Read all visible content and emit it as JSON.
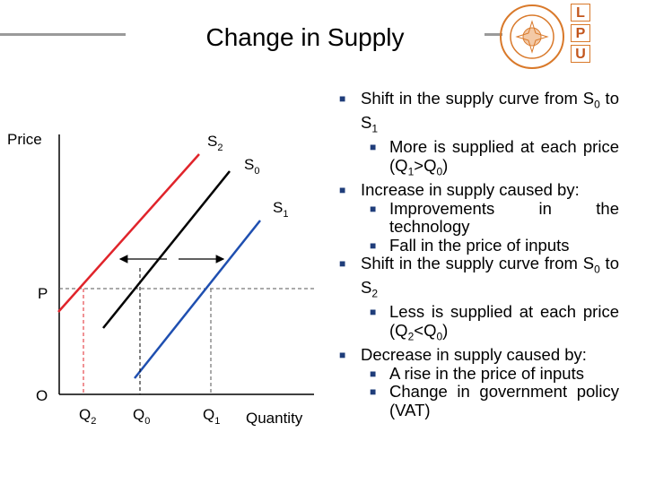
{
  "title": "Change in Supply",
  "logo_letters": [
    "L",
    "P",
    "U"
  ],
  "seal_text": "LOVELY PROFESSIONAL UNIVERSITY",
  "diagram": {
    "y_label": "Price",
    "x_label": "Quantity",
    "origin": "O",
    "price_label": "P",
    "curves": [
      {
        "name": "S",
        "sub": "2",
        "color": "#e0242b"
      },
      {
        "name": "S",
        "sub": "0",
        "color": "#000000"
      },
      {
        "name": "S",
        "sub": "1",
        "color": "#1f4fb0"
      }
    ],
    "quantities": [
      {
        "name": "Q",
        "sub": "2"
      },
      {
        "name": "Q",
        "sub": "0"
      },
      {
        "name": "Q",
        "sub": "1"
      }
    ]
  },
  "bullets": [
    {
      "level": 1,
      "text": "Shift in the supply curve from S0 to S1"
    },
    {
      "level": 2,
      "text": "More is supplied at each price (Q1>Q0)"
    },
    {
      "level": 1,
      "text": "Increase in supply caused by:"
    },
    {
      "level": 2,
      "text": "Improvements in the technology"
    },
    {
      "level": 2,
      "text": "Fall in the price of inputs"
    },
    {
      "level": 1,
      "text": "Shift in the supply curve from S0 to S2"
    },
    {
      "level": 2,
      "text": "Less is supplied at each price (Q2<Q0)"
    },
    {
      "level": 1,
      "text": "Decrease in supply caused by:"
    },
    {
      "level": 2,
      "text": "A rise in the price of inputs"
    },
    {
      "level": 2,
      "text": "Change in government policy (VAT)"
    }
  ],
  "colors": {
    "marker": "#1f3d7a",
    "logo": "#c2551c"
  }
}
